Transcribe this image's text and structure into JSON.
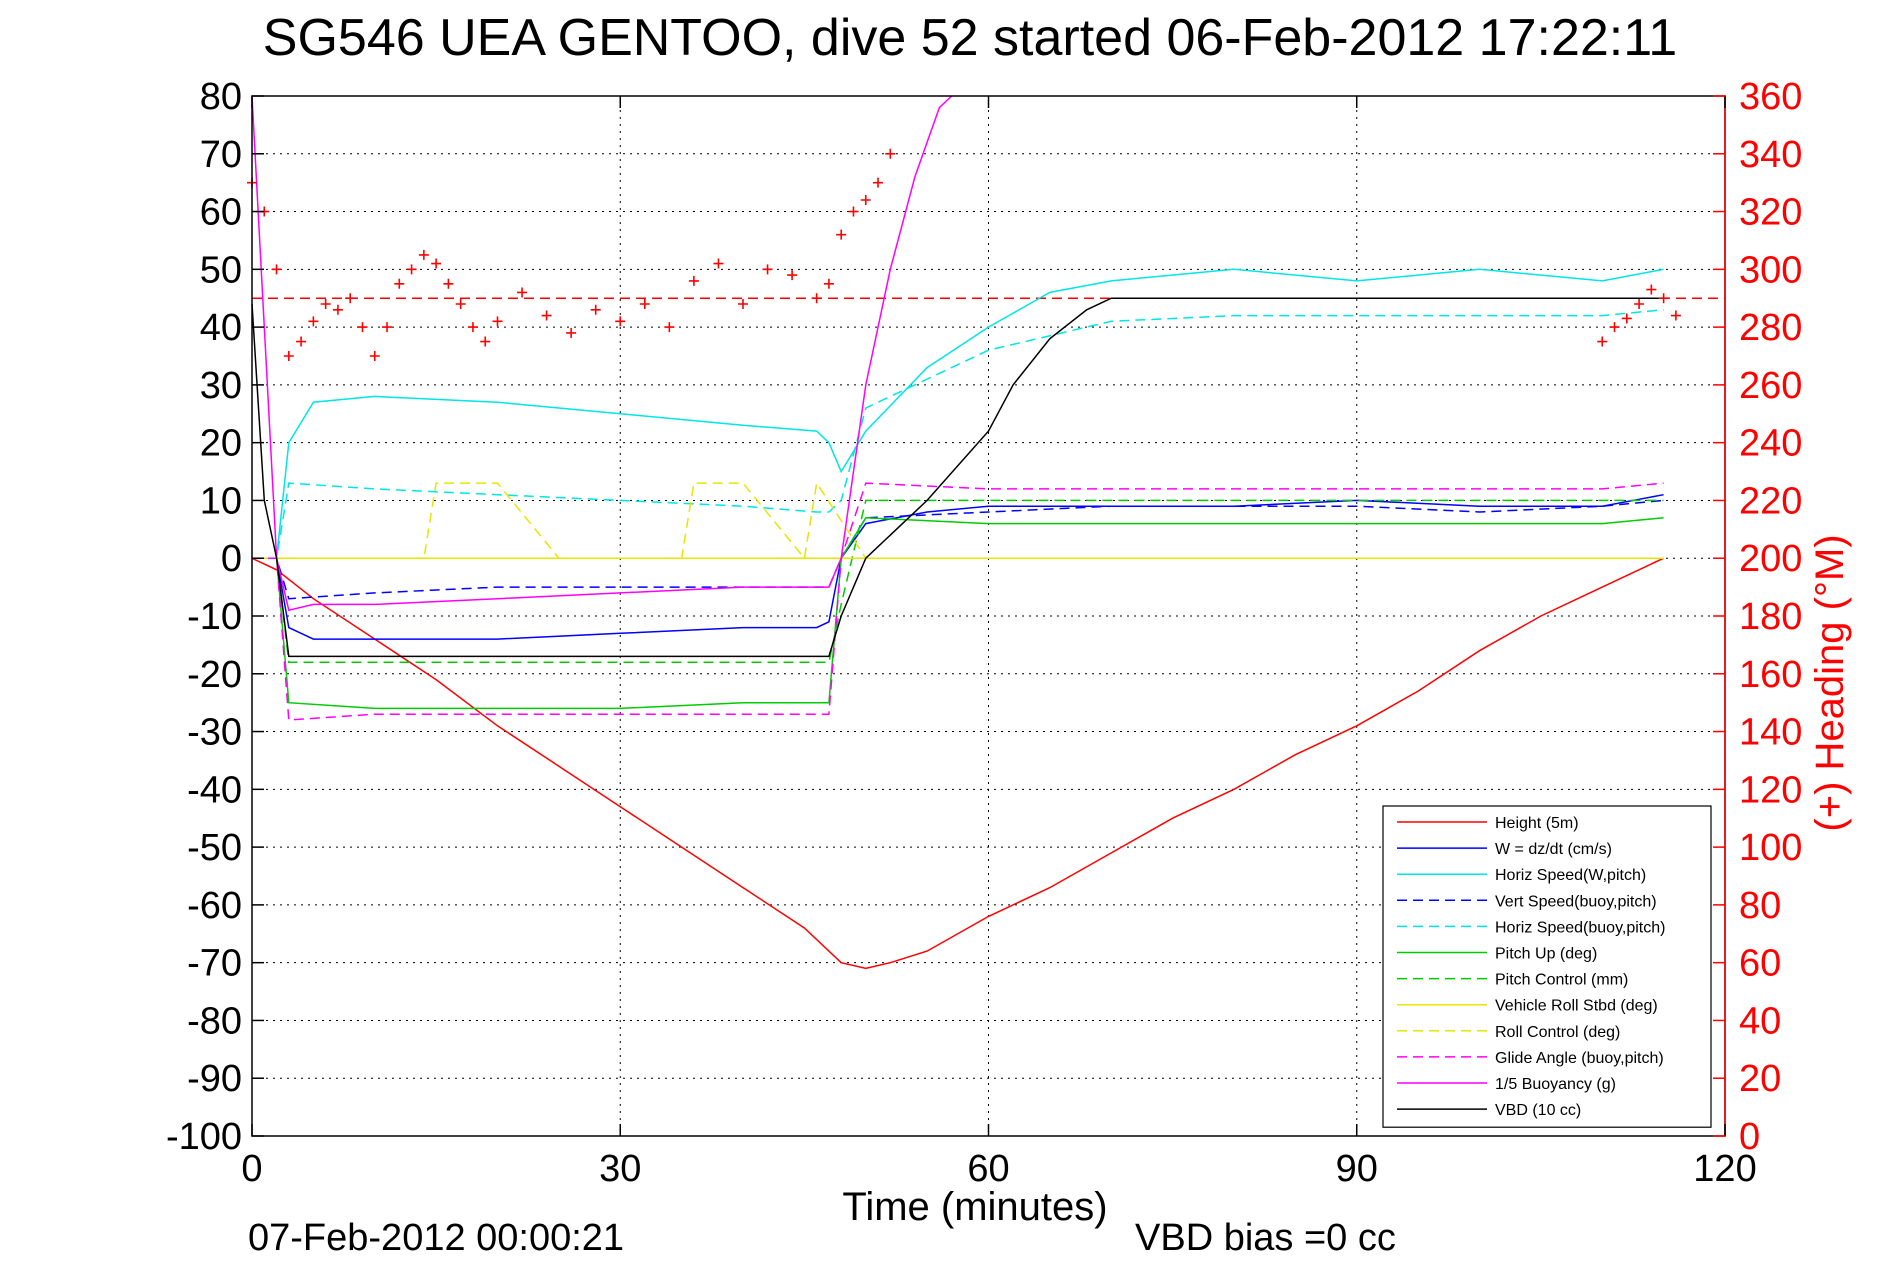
{
  "chart_data": {
    "type": "line",
    "title": "SG546 UEA GENTOO, dive 52 started 06-Feb-2012 17:22:11",
    "xlabel": "Time (minutes)",
    "ylabel": "",
    "y2label": "(+) Heading (°M)",
    "footer_left": "07-Feb-2012 00:00:21",
    "footer_right": "VBD bias =0 cc",
    "xlim": [
      0,
      120
    ],
    "ylim": [
      -100,
      80
    ],
    "y2lim": [
      0,
      360
    ],
    "xticks": [
      0,
      30,
      60,
      90,
      120
    ],
    "yticks": [
      80,
      70,
      60,
      50,
      40,
      30,
      20,
      10,
      0,
      -10,
      -20,
      -30,
      -40,
      -50,
      -60,
      -70,
      -80,
      -90,
      -100
    ],
    "y2ticks": [
      360,
      340,
      320,
      300,
      280,
      260,
      240,
      220,
      200,
      180,
      160,
      140,
      120,
      100,
      80,
      60,
      40,
      20,
      0
    ],
    "grid": true,
    "legend_position": "bottom-right",
    "colors": {
      "axis_right": "#ff0000",
      "grid": "#000000"
    },
    "heading_target": 290,
    "series": [
      {
        "name": "Height (5m)",
        "color": "#ff0000",
        "style": "solid",
        "x": [
          0,
          2,
          5,
          10,
          15,
          20,
          25,
          30,
          35,
          40,
          45,
          48,
          50,
          52,
          55,
          60,
          65,
          70,
          75,
          80,
          85,
          90,
          95,
          100,
          105,
          110,
          115
        ],
        "y": [
          0,
          -2,
          -7,
          -14,
          -21,
          -29,
          -36,
          -43,
          -50,
          -57,
          -64,
          -70,
          -71,
          -70,
          -68,
          -62,
          -57,
          -51,
          -45,
          -40,
          -34,
          -29,
          -23,
          -16,
          -10,
          -5,
          0
        ]
      },
      {
        "name": "W = dz/dt (cm/s)",
        "color": "#0000ff",
        "style": "solid",
        "x": [
          0,
          2,
          3,
          5,
          10,
          20,
          30,
          40,
          46,
          47,
          48,
          50,
          55,
          60,
          70,
          80,
          90,
          100,
          110,
          115
        ],
        "y": [
          0,
          0,
          -12,
          -14,
          -14,
          -14,
          -13,
          -12,
          -12,
          -11,
          0,
          6,
          8,
          9,
          9,
          9,
          10,
          9,
          9,
          11
        ]
      },
      {
        "name": "Horiz Speed(W,pitch)",
        "color": "#00e5e5",
        "style": "solid",
        "x": [
          0,
          2,
          3,
          5,
          10,
          20,
          30,
          40,
          46,
          47,
          48,
          50,
          55,
          60,
          65,
          70,
          80,
          90,
          100,
          110,
          115
        ],
        "y": [
          0,
          0,
          20,
          27,
          28,
          27,
          25,
          23,
          22,
          20,
          15,
          22,
          33,
          40,
          46,
          48,
          50,
          48,
          50,
          48,
          50
        ]
      },
      {
        "name": "Vert Speed(buoy,pitch)",
        "color": "#0000ff",
        "style": "dashed",
        "x": [
          0,
          2,
          3,
          10,
          20,
          30,
          40,
          46,
          47,
          48,
          50,
          60,
          70,
          80,
          90,
          100,
          110,
          115
        ],
        "y": [
          0,
          0,
          -7,
          -6,
          -5,
          -5,
          -5,
          -5,
          -5,
          0,
          7,
          8,
          9,
          9,
          9,
          8,
          9,
          10
        ]
      },
      {
        "name": "Horiz Speed(buoy,pitch)",
        "color": "#00e5e5",
        "style": "dashed",
        "x": [
          0,
          2,
          3,
          10,
          20,
          30,
          40,
          46,
          47,
          48,
          50,
          60,
          70,
          80,
          90,
          100,
          110,
          115
        ],
        "y": [
          0,
          0,
          13,
          12,
          11,
          10,
          9,
          8,
          8,
          10,
          26,
          36,
          41,
          42,
          42,
          42,
          42,
          43
        ]
      },
      {
        "name": "Pitch Up (deg)",
        "color": "#00cc00",
        "style": "solid",
        "x": [
          0,
          2,
          3,
          10,
          20,
          30,
          40,
          46,
          47,
          48,
          50,
          60,
          70,
          80,
          90,
          100,
          110,
          115
        ],
        "y": [
          0,
          0,
          -25,
          -26,
          -26,
          -26,
          -25,
          -25,
          -25,
          0,
          7,
          6,
          6,
          6,
          6,
          6,
          6,
          7
        ]
      },
      {
        "name": "Pitch Control (mm)",
        "color": "#00cc00",
        "style": "dashed",
        "x": [
          0,
          2,
          3,
          10,
          20,
          30,
          40,
          46,
          47,
          48,
          50,
          60,
          70,
          80,
          90,
          100,
          110,
          115
        ],
        "y": [
          0,
          0,
          -18,
          -18,
          -18,
          -18,
          -18,
          -18,
          -18,
          -8,
          10,
          10,
          10,
          10,
          10,
          10,
          10,
          10
        ]
      },
      {
        "name": "Vehicle Roll Stbd (deg)",
        "color": "#e6e600",
        "style": "solid",
        "x": [
          0,
          2,
          5,
          10,
          20,
          30,
          40,
          46,
          48,
          50,
          60,
          70,
          80,
          90,
          100,
          110,
          115
        ],
        "y": [
          0,
          0,
          0,
          0,
          0,
          0,
          0,
          0,
          0,
          0,
          0,
          0,
          0,
          0,
          0,
          0,
          0
        ]
      },
      {
        "name": "Roll Control (deg)",
        "color": "#e6e600",
        "style": "dashed",
        "x": [
          0,
          5,
          10,
          14,
          15,
          20,
          25,
          30,
          35,
          36,
          40,
          45,
          46,
          50,
          55,
          60,
          70,
          80,
          90,
          100,
          110,
          115
        ],
        "y": [
          0,
          0,
          0,
          0,
          13,
          13,
          0,
          0,
          0,
          13,
          13,
          0,
          13,
          0,
          0,
          0,
          0,
          0,
          0,
          0,
          0,
          0
        ]
      },
      {
        "name": "Glide Angle (buoy,pitch)",
        "color": "#ff00ff",
        "style": "dashed",
        "x": [
          0,
          2,
          3,
          10,
          20,
          30,
          40,
          46,
          47,
          48,
          50,
          60,
          70,
          80,
          90,
          100,
          110,
          115
        ],
        "y": [
          0,
          0,
          -28,
          -27,
          -27,
          -27,
          -27,
          -27,
          -27,
          0,
          13,
          12,
          12,
          12,
          12,
          12,
          12,
          13
        ]
      },
      {
        "name": "1/5 Buoyancy (g)",
        "color": "#ff00ff",
        "style": "solid",
        "x": [
          0,
          2,
          3,
          5,
          10,
          20,
          30,
          40,
          46,
          47,
          48,
          50,
          52,
          54,
          55,
          56,
          57
        ],
        "y": [
          80,
          0,
          -9,
          -8,
          -8,
          -7,
          -6,
          -5,
          -5,
          -5,
          0,
          30,
          50,
          66,
          72,
          78,
          80
        ]
      },
      {
        "name": "VBD (10 cc)",
        "color": "#000000",
        "style": "solid",
        "x": [
          0,
          1,
          2,
          3,
          10,
          20,
          30,
          40,
          46,
          47,
          48,
          50,
          55,
          60,
          62,
          65,
          68,
          70,
          80,
          90,
          100,
          110,
          115
        ],
        "y": [
          44,
          10,
          0,
          -17,
          -17,
          -17,
          -17,
          -17,
          -17,
          -17,
          -10,
          0,
          10,
          22,
          30,
          38,
          43,
          45,
          45,
          45,
          45,
          45,
          45
        ]
      },
      {
        "name": "",
        "axis": "right",
        "color": "#ff0000",
        "style": "markers",
        "x": [
          0,
          1,
          2,
          3,
          4,
          5,
          6,
          7,
          8,
          9,
          10,
          11,
          12,
          13,
          14,
          15,
          16,
          17,
          18,
          19,
          20,
          22,
          24,
          26,
          28,
          30,
          32,
          34,
          36,
          38,
          40,
          42,
          44,
          46,
          47,
          48,
          49,
          50,
          51,
          52,
          110,
          111,
          112,
          113,
          114,
          115,
          116
        ],
        "y": [
          330,
          320,
          300,
          270,
          275,
          282,
          288,
          286,
          290,
          280,
          270,
          280,
          295,
          300,
          305,
          302,
          295,
          288,
          280,
          275,
          282,
          292,
          284,
          278,
          286,
          282,
          288,
          280,
          296,
          302,
          288,
          300,
          298,
          290,
          295,
          312,
          320,
          324,
          330,
          340,
          275,
          280,
          283,
          288,
          293,
          290,
          284
        ]
      }
    ],
    "legend": [
      "Height (5m)",
      "W = dz/dt (cm/s)",
      "Horiz Speed(W,pitch)",
      "Vert Speed(buoy,pitch)",
      "Horiz Speed(buoy,pitch)",
      "Pitch Up (deg)",
      "Pitch Control (mm)",
      "Vehicle Roll Stbd (deg)",
      "Roll Control (deg)",
      "Glide Angle (buoy,pitch)",
      "1/5 Buoyancy (g)",
      "VBD (10 cc)"
    ]
  }
}
